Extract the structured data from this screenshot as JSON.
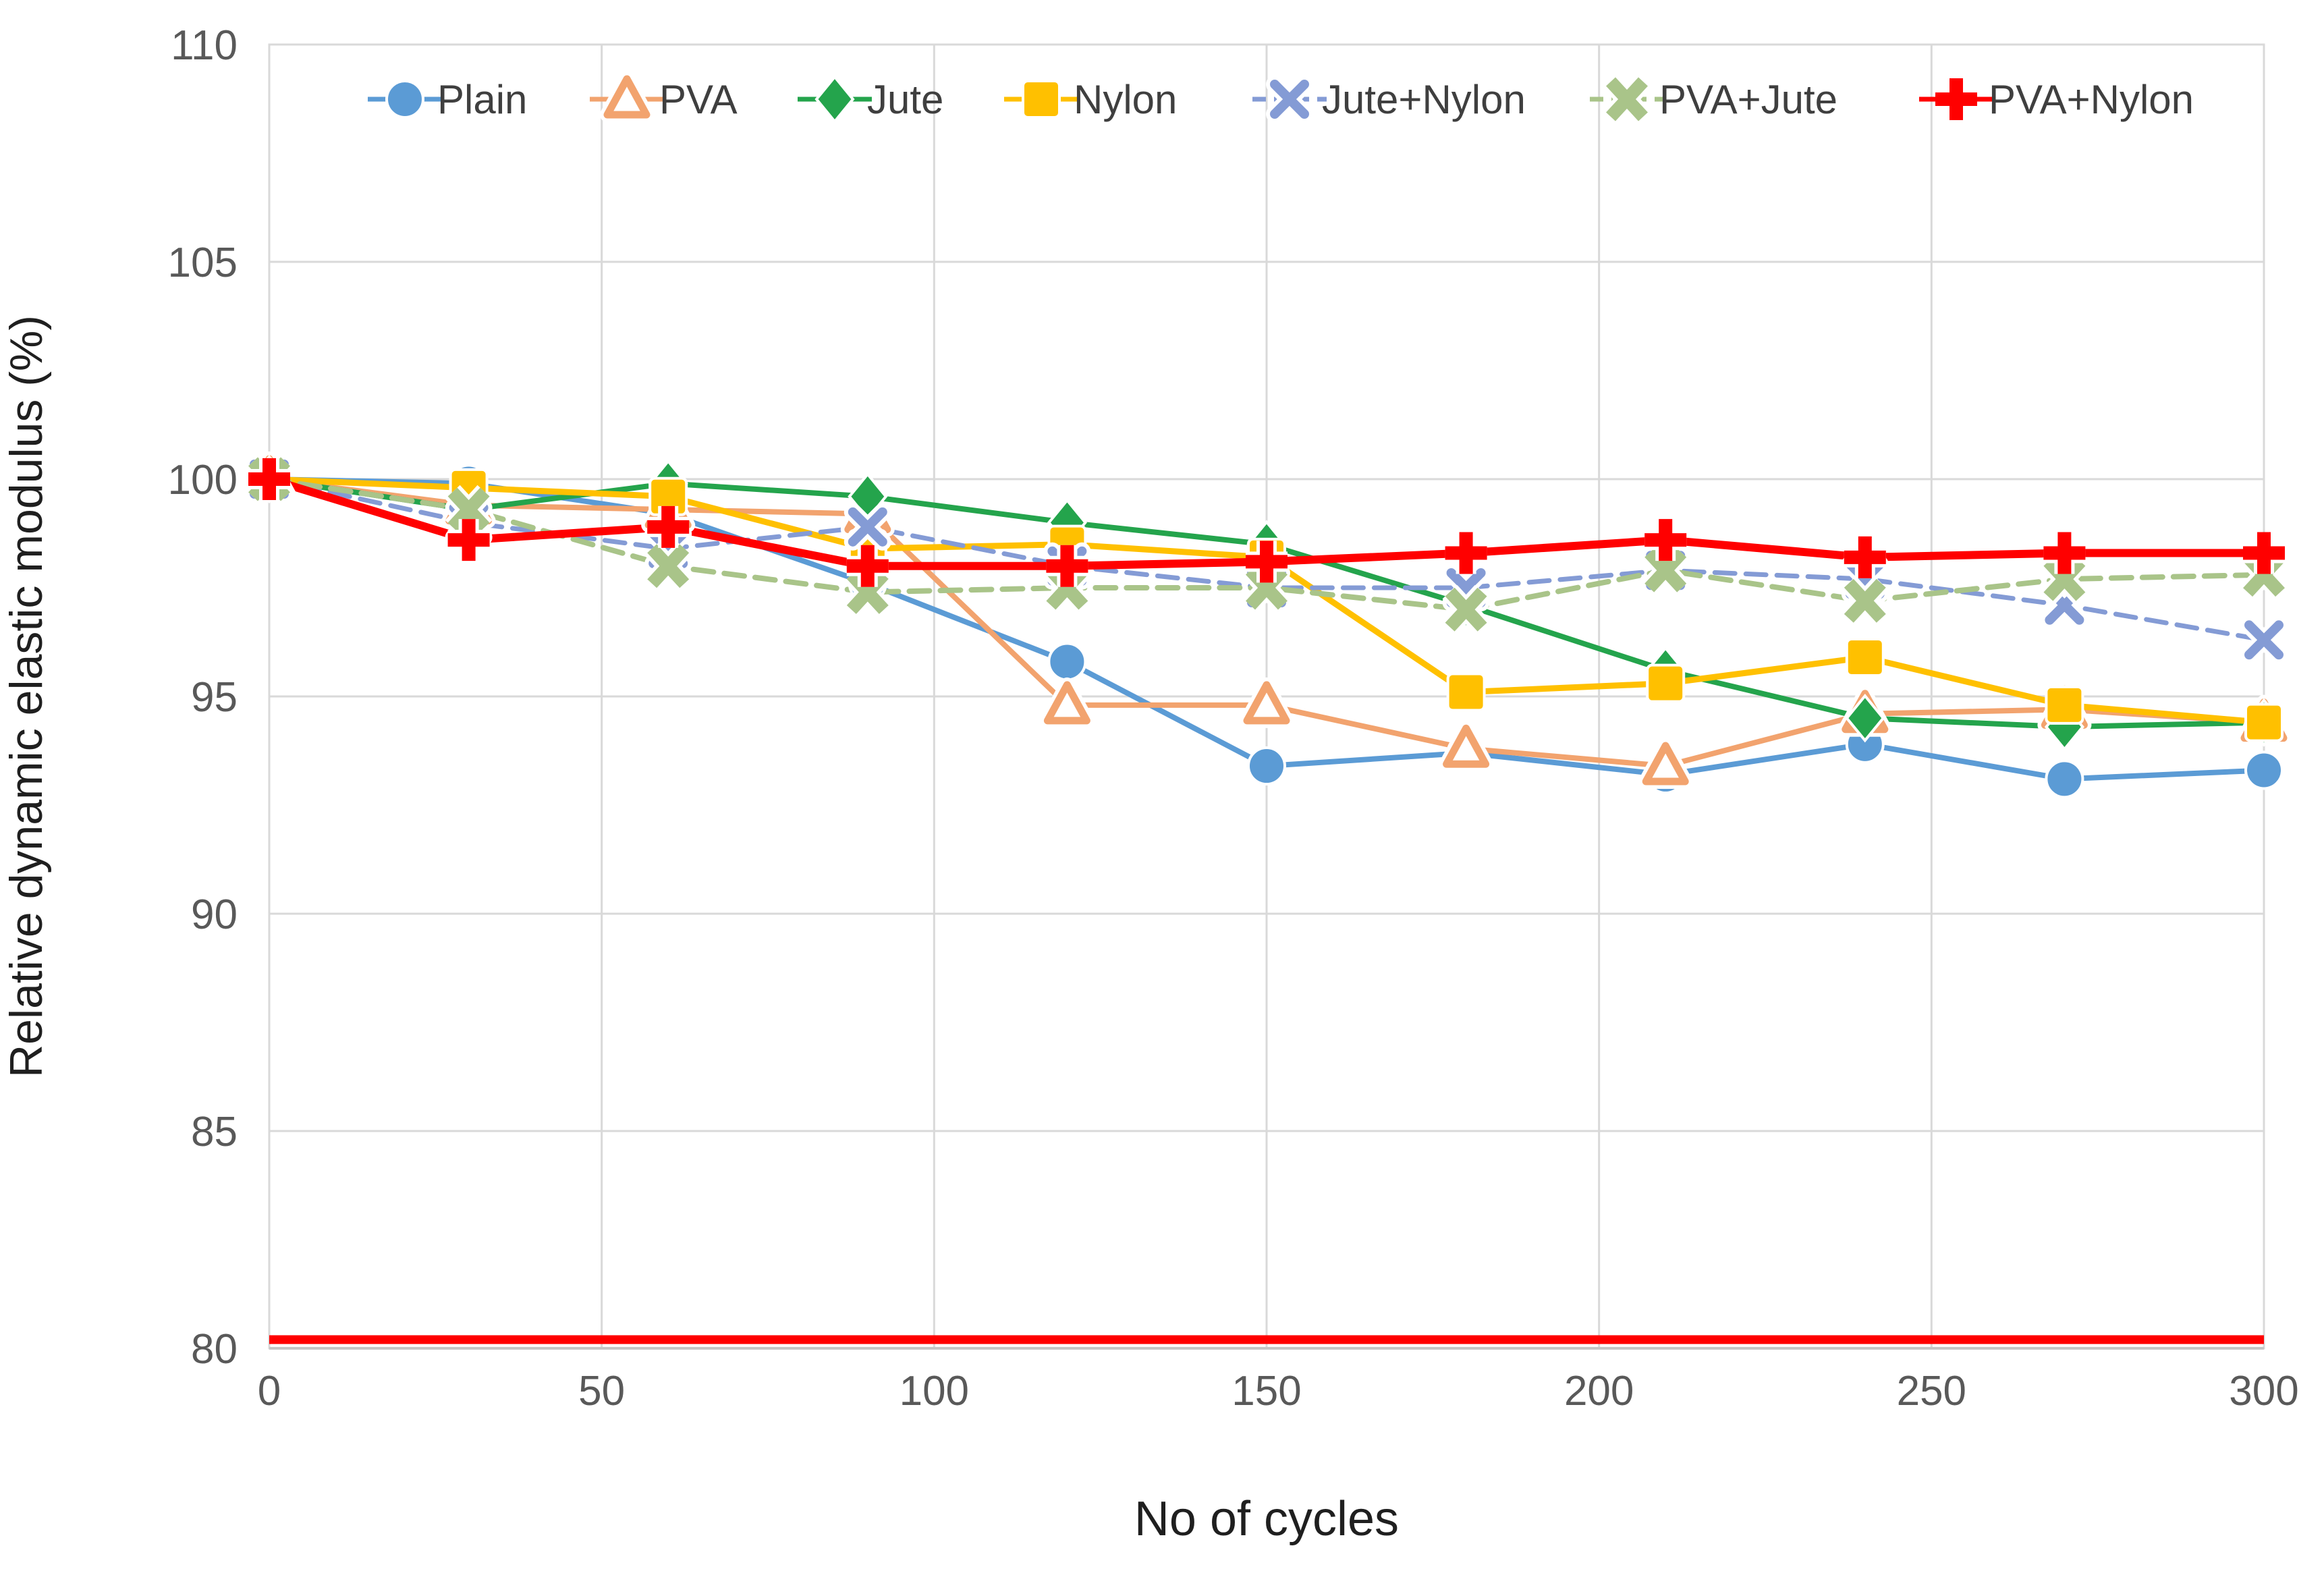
{
  "chart_data": {
    "type": "line",
    "title": "",
    "xlabel": "No of cycles",
    "ylabel": "Relative dynamic elastic modulus (%)",
    "xlim": [
      0,
      300
    ],
    "ylim": [
      80,
      110
    ],
    "x_ticks": [
      0,
      50,
      100,
      150,
      200,
      250,
      300
    ],
    "y_ticks": [
      80,
      85,
      90,
      95,
      100,
      105,
      110
    ],
    "grid": true,
    "legend_position": "top-inside",
    "x": [
      0,
      30,
      60,
      90,
      120,
      150,
      180,
      210,
      240,
      270,
      300
    ],
    "series": [
      {
        "name": "Plain",
        "marker": "circle",
        "color": "#5B9BD5",
        "dash": false,
        "width": 8,
        "values": [
          100,
          99.9,
          99.2,
          97.6,
          95.8,
          93.4,
          93.7,
          93.2,
          93.9,
          93.1,
          93.3
        ]
      },
      {
        "name": "PVA",
        "marker": "triangle-open",
        "color": "#F2A36E",
        "dash": false,
        "width": 8,
        "values": [
          100,
          99.4,
          99.3,
          99.2,
          94.8,
          94.8,
          93.8,
          93.4,
          94.6,
          94.7,
          94.4
        ]
      },
      {
        "name": "Jute",
        "marker": "diamond",
        "color": "#24A44C",
        "dash": false,
        "width": 8,
        "values": [
          100,
          99.3,
          99.9,
          99.6,
          99.0,
          98.5,
          97.1,
          95.6,
          94.5,
          94.3,
          94.4
        ]
      },
      {
        "name": "Nylon",
        "marker": "square",
        "color": "#FFC000",
        "dash": false,
        "width": 9,
        "values": [
          100,
          99.8,
          99.6,
          98.4,
          98.5,
          98.2,
          95.1,
          95.3,
          95.9,
          94.8,
          94.4
        ]
      },
      {
        "name": "Jute+Nylon",
        "marker": "x",
        "color": "#849BD5",
        "dash": true,
        "width": 7,
        "values": [
          100,
          99.0,
          98.4,
          98.9,
          98.0,
          97.5,
          97.5,
          97.9,
          97.7,
          97.1,
          96.3
        ]
      },
      {
        "name": "PVA+Jute",
        "marker": "x-chunky",
        "color": "#A9C489",
        "dash": true,
        "width": 8,
        "values": [
          100,
          99.3,
          98.0,
          97.4,
          97.5,
          97.5,
          97.0,
          97.9,
          97.2,
          97.7,
          97.8
        ]
      },
      {
        "name": "PVA+Nylon",
        "marker": "plus",
        "color": "#FF0000",
        "dash": false,
        "width": 12,
        "values": [
          100,
          98.6,
          98.9,
          98.0,
          98.0,
          98.1,
          98.3,
          98.6,
          98.2,
          98.3,
          98.3
        ]
      }
    ],
    "threshold_line": {
      "value": 80.2,
      "color": "#FF0000",
      "width": 13
    },
    "gridline_color": "#D9D9D9",
    "tick_label_color": "#595959",
    "legend_anchors_x": [
      600,
      929,
      1237,
      1543,
      1911,
      2411,
      2899
    ],
    "legend_y": 147
  }
}
